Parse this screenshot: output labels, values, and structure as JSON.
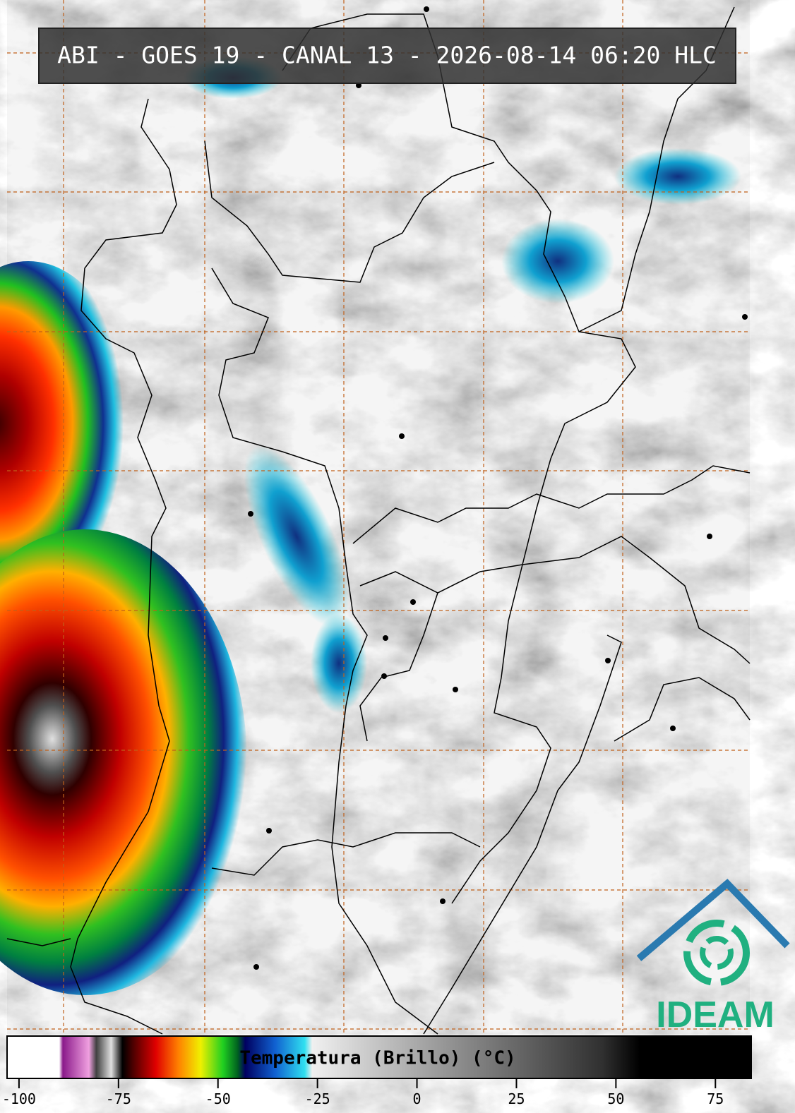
{
  "title": "ABI - GOES 19 - CANAL 13 - 2026-08-14 06:20 HLC",
  "colorbar": {
    "label": "Temperatura (Brillo) (°C)",
    "range": [
      -103,
      84
    ],
    "ticks": [
      -100,
      -75,
      -50,
      -25,
      0,
      25,
      50,
      75
    ]
  },
  "logo": "IDEAM"
}
